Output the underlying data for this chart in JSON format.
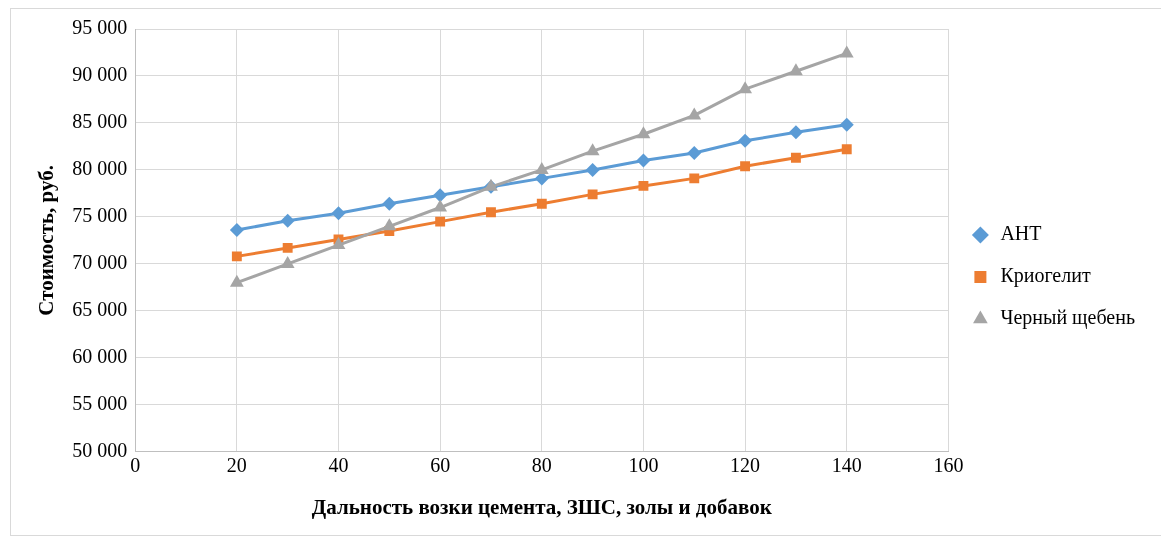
{
  "chart_data": {
    "type": "line",
    "xlabel": "Дальность возки цемента, ЗШС, золы и добавок",
    "ylabel": "Стоимость, руб.",
    "x": [
      20,
      30,
      40,
      50,
      60,
      70,
      80,
      90,
      100,
      110,
      120,
      130,
      140
    ],
    "series": [
      {
        "name": "АНТ",
        "color": "#5b9bd5",
        "marker": "diamond",
        "values": [
          73600,
          74600,
          75400,
          76400,
          77300,
          78200,
          79100,
          80000,
          81000,
          81800,
          83100,
          84000,
          84800
        ]
      },
      {
        "name": "Криогелит",
        "color": "#ed7d31",
        "marker": "square",
        "values": [
          70800,
          71700,
          72600,
          73500,
          74500,
          75500,
          76400,
          77400,
          78300,
          79100,
          80400,
          81300,
          82200
        ]
      },
      {
        "name": "Черный щебень",
        "color": "#a5a5a5",
        "marker": "triangle",
        "values": [
          68000,
          70000,
          72000,
          74000,
          76000,
          78200,
          80000,
          82000,
          83800,
          85800,
          88600,
          90500,
          92400
        ]
      }
    ],
    "xlim": [
      0,
      160
    ],
    "xticks": [
      0,
      20,
      40,
      60,
      80,
      100,
      120,
      140,
      160
    ],
    "ylim": [
      50000,
      95000
    ],
    "yticks": [
      {
        "value": 50000,
        "label": "50 000"
      },
      {
        "value": 55000,
        "label": "55 000"
      },
      {
        "value": 60000,
        "label": "60 000"
      },
      {
        "value": 65000,
        "label": "65 000"
      },
      {
        "value": 70000,
        "label": "70 000"
      },
      {
        "value": 75000,
        "label": "75 000"
      },
      {
        "value": 80000,
        "label": "80 000"
      },
      {
        "value": 85000,
        "label": "85 000"
      },
      {
        "value": 90000,
        "label": "90 000"
      },
      {
        "value": 95000,
        "label": "95 000"
      }
    ],
    "grid": true,
    "legend": "right",
    "line_style": "solid"
  }
}
